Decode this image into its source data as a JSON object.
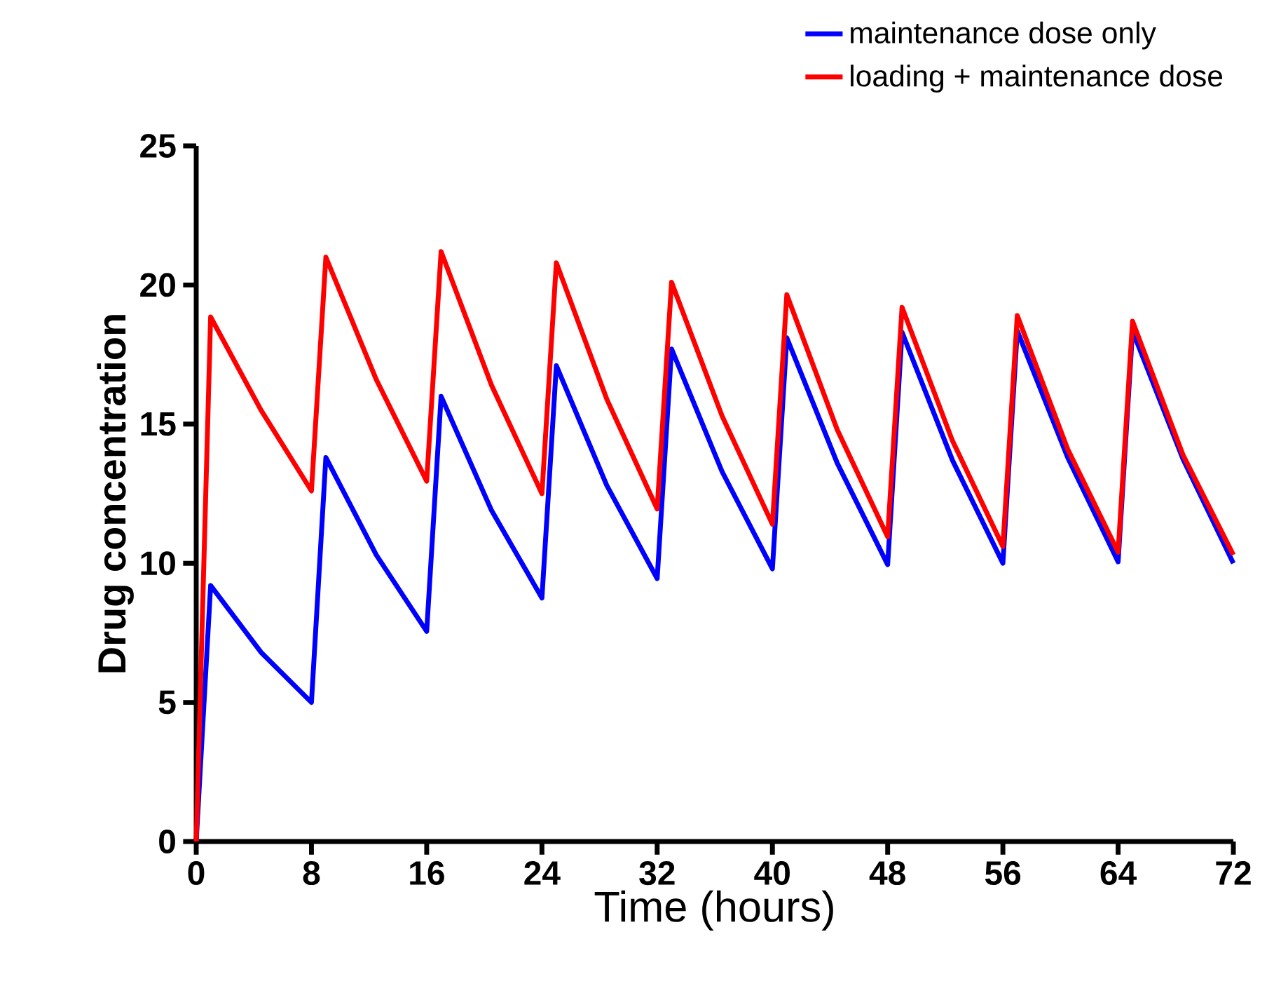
{
  "chart_data": {
    "type": "line",
    "xlabel": "Time (hours)",
    "ylabel": "Drug concentration",
    "xlim": [
      0,
      72
    ],
    "ylim": [
      0,
      25
    ],
    "xticks": [
      0,
      8,
      16,
      24,
      32,
      40,
      48,
      56,
      64,
      72
    ],
    "yticks": [
      0,
      5,
      10,
      15,
      20,
      25
    ],
    "grid": false,
    "legend": "top right",
    "marker": "none",
    "line_style": "solid",
    "series": [
      {
        "name": "maintenance dose only",
        "color": "#0000ff",
        "x": [
          0,
          1,
          4.5,
          8,
          9,
          12.5,
          16,
          17,
          20.5,
          24,
          25,
          28.5,
          32,
          33,
          36.5,
          40,
          41,
          44.5,
          48,
          49,
          52.5,
          56,
          57,
          60.5,
          64,
          65,
          68.5,
          72
        ],
        "values": [
          0,
          9.2,
          6.8,
          5.0,
          13.8,
          10.3,
          7.55,
          16.0,
          11.9,
          8.75,
          17.1,
          12.8,
          9.45,
          17.7,
          13.3,
          9.8,
          18.1,
          13.6,
          9.95,
          18.3,
          13.7,
          10.0,
          18.35,
          13.8,
          10.05,
          18.35,
          13.75,
          10.0
        ]
      },
      {
        "name": "loading + maintenance dose",
        "color": "#ff0000",
        "x": [
          0,
          1,
          4.5,
          8,
          9,
          12.5,
          16,
          17,
          20.5,
          24,
          25,
          28.5,
          32,
          33,
          36.5,
          40,
          41,
          44.5,
          48,
          49,
          52.5,
          56,
          57,
          60.5,
          64,
          65,
          68.5,
          72
        ],
        "values": [
          0,
          18.85,
          15.5,
          12.6,
          21.0,
          16.6,
          12.95,
          21.2,
          16.4,
          12.5,
          20.8,
          15.9,
          11.95,
          20.1,
          15.3,
          11.4,
          19.65,
          14.8,
          10.95,
          19.2,
          14.4,
          10.6,
          18.9,
          14.1,
          10.4,
          18.7,
          13.9,
          10.3
        ]
      }
    ]
  }
}
